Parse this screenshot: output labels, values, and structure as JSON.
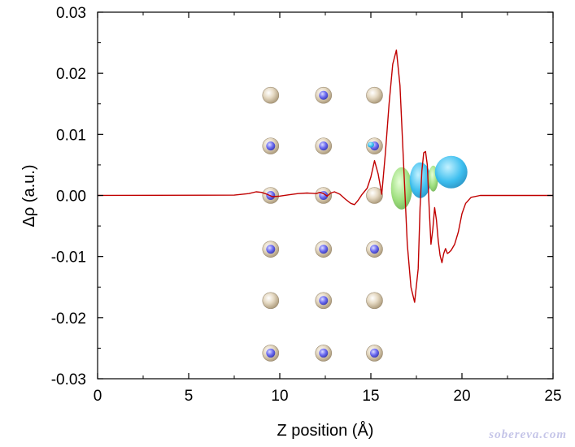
{
  "watermark": "sobereva.com",
  "colors": {
    "line": "#c00000",
    "axis": "#000000",
    "atom_large_fill": "#e8dcc8",
    "atom_large_stroke": "#9a8a70",
    "atom_small_fill": "#6666ee",
    "iso_positive": "#33bbee",
    "iso_negative": "#99dd77",
    "watermark": "#c5c5e8"
  },
  "chart_data": {
    "type": "line",
    "title": "",
    "xlabel": "Z position (Å)",
    "ylabel": "Δρ (a.u.)",
    "xlim": [
      0,
      25
    ],
    "ylim": [
      -0.03,
      0.03
    ],
    "x_ticks": [
      "0",
      "5",
      "10",
      "15",
      "20",
      "25"
    ],
    "y_ticks": [
      "-0.03",
      "-0.02",
      "-0.01",
      "0.00",
      "0.01",
      "0.02",
      "0.03"
    ],
    "grid": false,
    "legend": "none",
    "series": [
      {
        "x": [
          0,
          7.5,
          8.3,
          8.7,
          9.0,
          9.3,
          9.6,
          10.0,
          10.5,
          11.0,
          11.5,
          12.0,
          12.2,
          12.4,
          12.6,
          12.8,
          13.0,
          13.3,
          13.6,
          13.9,
          14.1,
          14.3,
          14.5,
          14.8,
          15.0,
          15.2,
          15.4,
          15.6,
          15.8,
          16.0,
          16.2,
          16.4,
          16.6,
          16.8,
          17.0,
          17.2,
          17.4,
          17.6,
          17.7,
          17.8,
          17.9,
          18.0,
          18.1,
          18.2,
          18.3,
          18.4,
          18.5,
          18.6,
          18.7,
          18.8,
          18.9,
          19.0,
          19.1,
          19.2,
          19.3,
          19.4,
          19.6,
          19.8,
          20.0,
          20.2,
          20.5,
          21.0,
          22.0,
          25.0
        ],
        "y": [
          0,
          5e-05,
          0.0003,
          0.0006,
          0.0005,
          0.0002,
          -0.0002,
          -0.0001,
          0.0001,
          0.0003,
          0.0004,
          0.0003,
          0.0005,
          0.0003,
          -0.0001,
          0.0004,
          0.0006,
          0.0002,
          -0.0006,
          -0.0013,
          -0.0015,
          -0.0008,
          0.0001,
          0.0012,
          0.003,
          0.0057,
          0.0035,
          0.0002,
          0.007,
          0.015,
          0.0215,
          0.0238,
          0.018,
          0.005,
          -0.008,
          -0.015,
          -0.0175,
          -0.012,
          -0.002,
          0.004,
          0.007,
          0.0072,
          0.005,
          -0.002,
          -0.008,
          -0.0055,
          -0.002,
          -0.004,
          -0.0075,
          -0.0098,
          -0.011,
          -0.0095,
          -0.0087,
          -0.0095,
          -0.0093,
          -0.009,
          -0.008,
          -0.006,
          -0.003,
          -0.0013,
          -0.0003,
          0,
          0,
          0
        ]
      }
    ],
    "overlay": {
      "atom_columns_z": [
        9.5,
        12.4,
        15.2
      ],
      "atom_rows_y": [
        0.0164,
        0.0081,
        0.0,
        -0.0088,
        -0.0172,
        -0.0258
      ],
      "small_blue_atom_z_column": 12.4,
      "isosurface_center_z": 17.8,
      "isosurface_center_y": 0.0017
    }
  }
}
